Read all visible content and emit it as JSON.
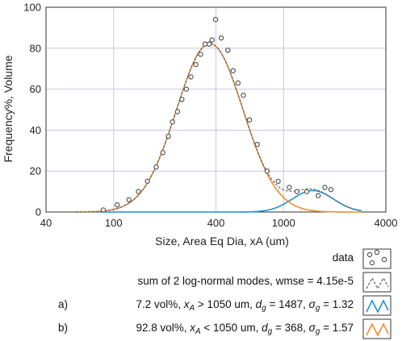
{
  "chart_data": {
    "type": "line",
    "xlabel": "Size, Area Eq Dia, xA (um)",
    "ylabel": "Frequency%, Volume",
    "x_scale": "log",
    "xlim": [
      40,
      4000
    ],
    "ylim": [
      0,
      100
    ],
    "x_ticks": [
      40,
      100,
      400,
      1000,
      4000
    ],
    "x_tick_labels": [
      "40",
      "100",
      "400",
      "1000",
      "4000"
    ],
    "y_ticks": [
      0,
      20,
      40,
      60,
      80,
      100
    ],
    "y_tick_labels": [
      "0",
      "20",
      "40",
      "60",
      "80",
      "100"
    ],
    "grid": true,
    "legend_position": "below",
    "series": [
      {
        "name": "data",
        "kind": "scatter",
        "color": "#555555",
        "x": [
          87,
          105,
          123,
          140,
          158,
          178,
          195,
          210,
          222,
          238,
          252,
          268,
          285,
          305,
          325,
          345,
          365,
          380,
          398,
          430,
          470,
          505,
          540,
          580,
          630,
          700,
          800,
          930,
          1080,
          1200,
          1370,
          1600,
          1750,
          1900
        ],
        "y": [
          1,
          3.5,
          6,
          10,
          15,
          22,
          29,
          37,
          44,
          49,
          55,
          60,
          66,
          72,
          77,
          82,
          82,
          84,
          94,
          85,
          79,
          69,
          63,
          57,
          45,
          33,
          20,
          15,
          12,
          10,
          10,
          8,
          12,
          11
        ]
      },
      {
        "name": "sum of 2 log-normal modes, wmse = 4.15e-5",
        "kind": "line",
        "dashed": true,
        "color": "#666666",
        "x": [],
        "y": []
      },
      {
        "name": "7.2 vol%, x_A > 1050 um, d_g = 1487, σ_g = 1.32",
        "kind": "line",
        "color": "#1a8fe0",
        "mode": {
          "peak": 10.5,
          "dg": 1487,
          "sigma_g": 1.32
        },
        "x": [],
        "y": []
      },
      {
        "name": "92.8 vol%, x_A < 1050 um, d_g = 368, σ_g = 1.57",
        "kind": "line",
        "color": "#f08c2e",
        "mode": {
          "peak": 82.3,
          "dg": 368,
          "sigma_g": 1.57
        },
        "x": [],
        "y": []
      }
    ]
  },
  "legend": {
    "items": [
      {
        "prefix": "",
        "text": "data",
        "swatch": "dots"
      },
      {
        "prefix": "",
        "text": "sum of 2 log-normal modes, wmse = 4.15e-5",
        "swatch": "dashed"
      },
      {
        "prefix": "a)",
        "text_parts": [
          "7.2 vol%, ",
          "x",
          "A",
          " > 1050 um, ",
          "d",
          "g",
          " = 1487, ",
          "σ",
          "g",
          " = 1.32"
        ],
        "swatch": "blue"
      },
      {
        "prefix": "b)",
        "text_parts": [
          "92.8 vol%, ",
          "x",
          "A",
          " < 1050 um, ",
          "d",
          "g",
          " = 368, ",
          "σ",
          "g",
          " = 1.57"
        ],
        "swatch": "orange"
      }
    ]
  },
  "colors": {
    "grid": "#c9c4e6",
    "axis": "#333333",
    "data_marker": "#555555",
    "sum_line": "#666666",
    "mode_a": "#1a8fe0",
    "mode_b": "#f08c2e"
  }
}
